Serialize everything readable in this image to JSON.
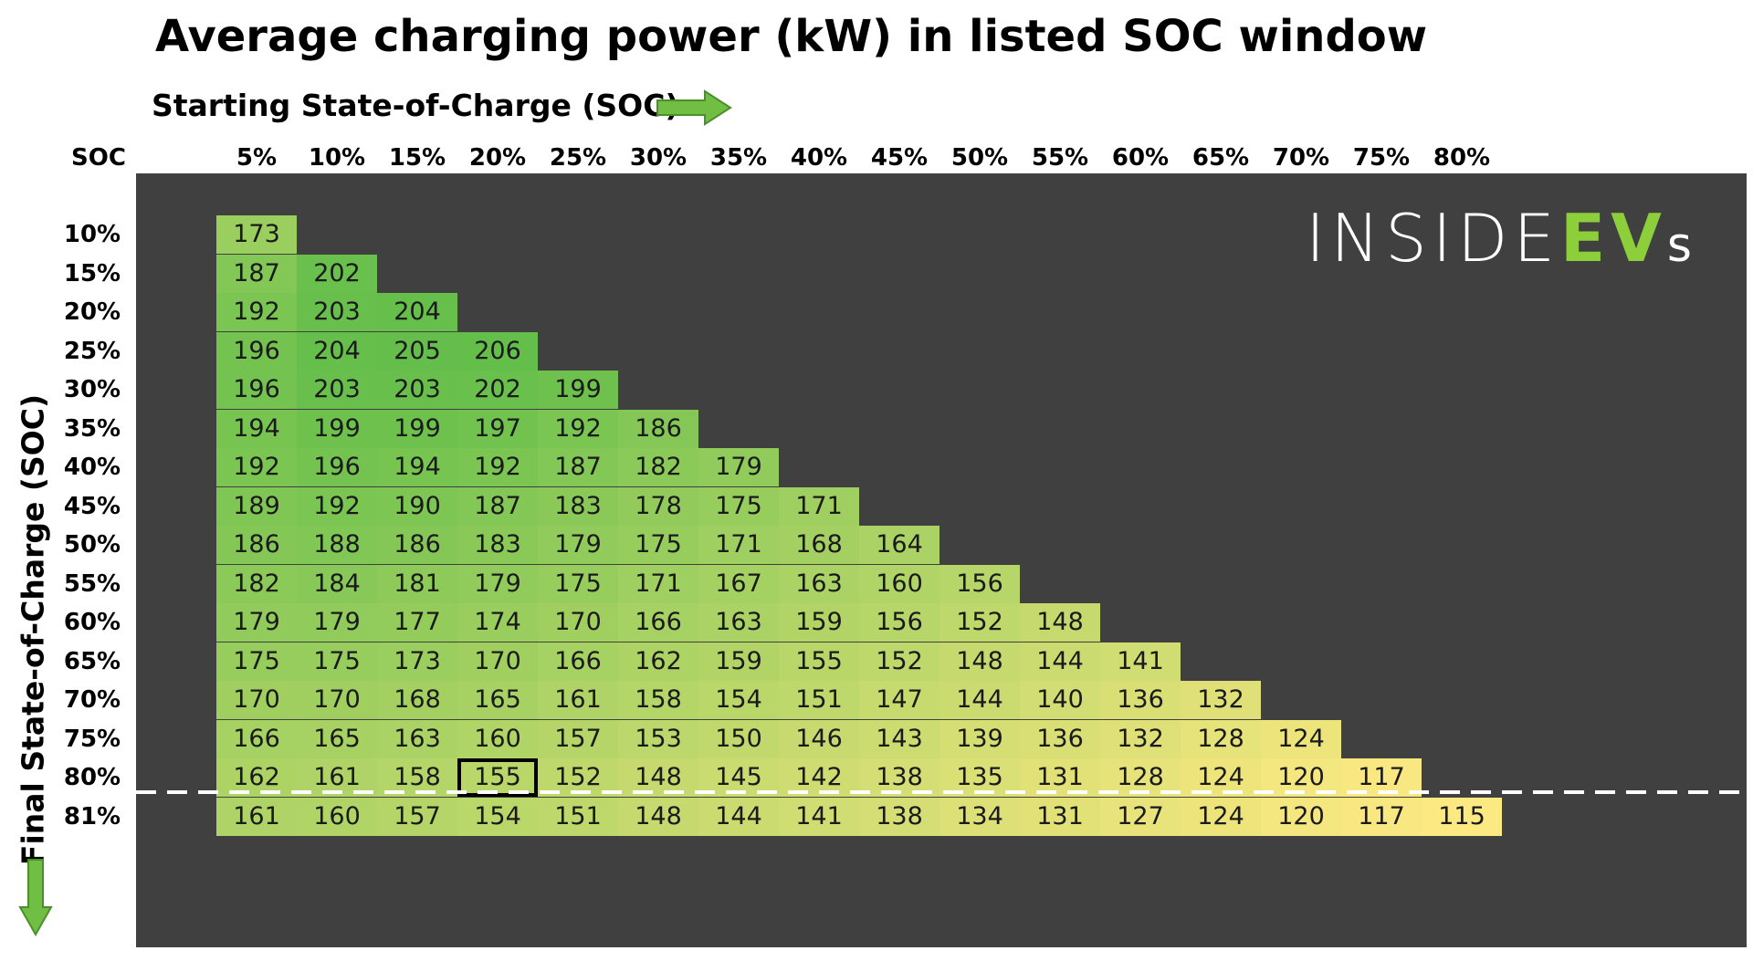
{
  "chart_data": {
    "type": "heatmap",
    "title": "Average charging power (kW) in listed SOC window",
    "xlabel": "Starting State-of-Charge (SOC)",
    "ylabel": "Final State-of-Charge (SOC)",
    "corner_label": "SOC",
    "x_categories": [
      "5%",
      "10%",
      "15%",
      "20%",
      "25%",
      "30%",
      "35%",
      "40%",
      "45%",
      "50%",
      "55%",
      "60%",
      "65%",
      "70%",
      "75%",
      "80%"
    ],
    "y_categories": [
      "10%",
      "15%",
      "20%",
      "25%",
      "30%",
      "35%",
      "40%",
      "45%",
      "50%",
      "55%",
      "60%",
      "65%",
      "70%",
      "75%",
      "80%",
      "81%"
    ],
    "values": [
      [
        173
      ],
      [
        187,
        202
      ],
      [
        192,
        203,
        204
      ],
      [
        196,
        204,
        205,
        206
      ],
      [
        196,
        203,
        203,
        202,
        199
      ],
      [
        194,
        199,
        199,
        197,
        192,
        186
      ],
      [
        192,
        196,
        194,
        192,
        187,
        182,
        179
      ],
      [
        189,
        192,
        190,
        187,
        183,
        178,
        175,
        171
      ],
      [
        186,
        188,
        186,
        183,
        179,
        175,
        171,
        168,
        164
      ],
      [
        182,
        184,
        181,
        179,
        175,
        171,
        167,
        163,
        160,
        156
      ],
      [
        179,
        179,
        177,
        174,
        170,
        166,
        163,
        159,
        156,
        152,
        148
      ],
      [
        175,
        175,
        173,
        170,
        166,
        162,
        159,
        155,
        152,
        148,
        144,
        141
      ],
      [
        170,
        170,
        168,
        165,
        161,
        158,
        154,
        151,
        147,
        144,
        140,
        136,
        132
      ],
      [
        166,
        165,
        163,
        160,
        157,
        153,
        150,
        146,
        143,
        139,
        136,
        132,
        128,
        124
      ],
      [
        162,
        161,
        158,
        155,
        152,
        148,
        145,
        142,
        138,
        135,
        131,
        128,
        124,
        120,
        117
      ],
      [
        161,
        160,
        157,
        154,
        151,
        148,
        144,
        141,
        138,
        134,
        131,
        127,
        124,
        120,
        117,
        115
      ]
    ],
    "highlighted_cell": {
      "start": "20%",
      "final": "80%"
    },
    "cutoff_line_between": [
      "80%",
      "81%"
    ],
    "color_scale": {
      "low": "#fce982",
      "high": "#63be4a"
    },
    "background_color": "#404040",
    "logo": "INSIDEEVs"
  }
}
